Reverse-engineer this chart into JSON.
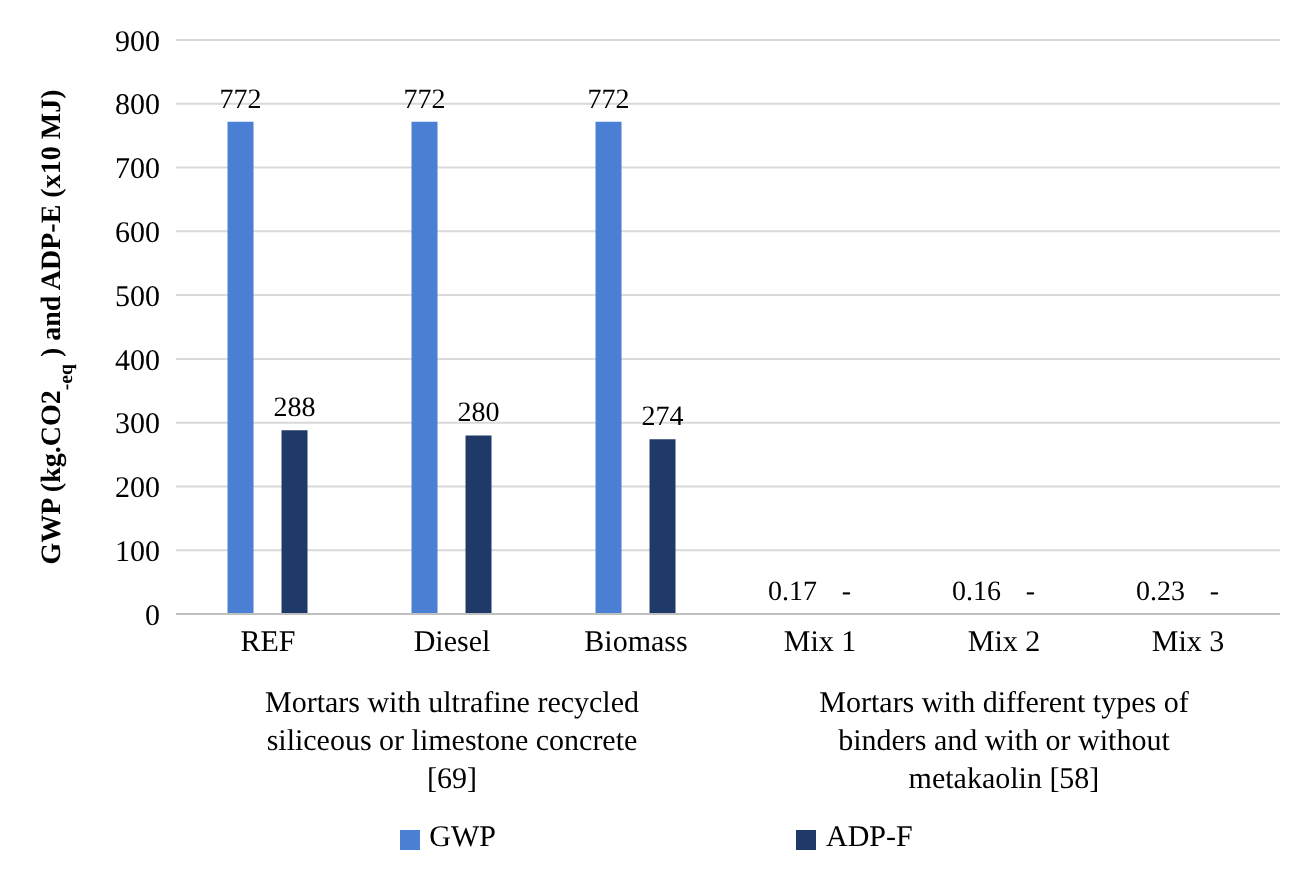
{
  "chart_data": {
    "type": "bar",
    "ylabel": "GWP (kg.CO2$_{-eq}$) and ADP-E (x10 MJ)",
    "categories": [
      "REF",
      "Diesel",
      "Biomass",
      "Mix 1",
      "Mix 2",
      "Mix 3"
    ],
    "series": [
      {
        "name": "GWP",
        "color": "#4a7fd4",
        "values": [
          772,
          772,
          772,
          0.17,
          0.16,
          0.23
        ],
        "value_labels": [
          "772",
          "772",
          "772",
          "0.17",
          "0.16",
          "0.23"
        ]
      },
      {
        "name": "ADP-F",
        "color": "#1f3a68",
        "values": [
          288,
          280,
          274,
          null,
          null,
          null
        ],
        "value_labels": [
          "288",
          "280",
          "274",
          "-",
          "-",
          "-"
        ]
      }
    ],
    "ylim": [
      0,
      900
    ],
    "yticks": [
      0,
      100,
      200,
      300,
      400,
      500,
      600,
      700,
      800,
      900
    ],
    "grid": "y",
    "legend": "bottom",
    "annotations": [
      "Mortars with ultrafine recycled siliceous or limestone concrete [69]",
      "Mortars with different types of binders and with or without metakaolin [58]"
    ]
  }
}
